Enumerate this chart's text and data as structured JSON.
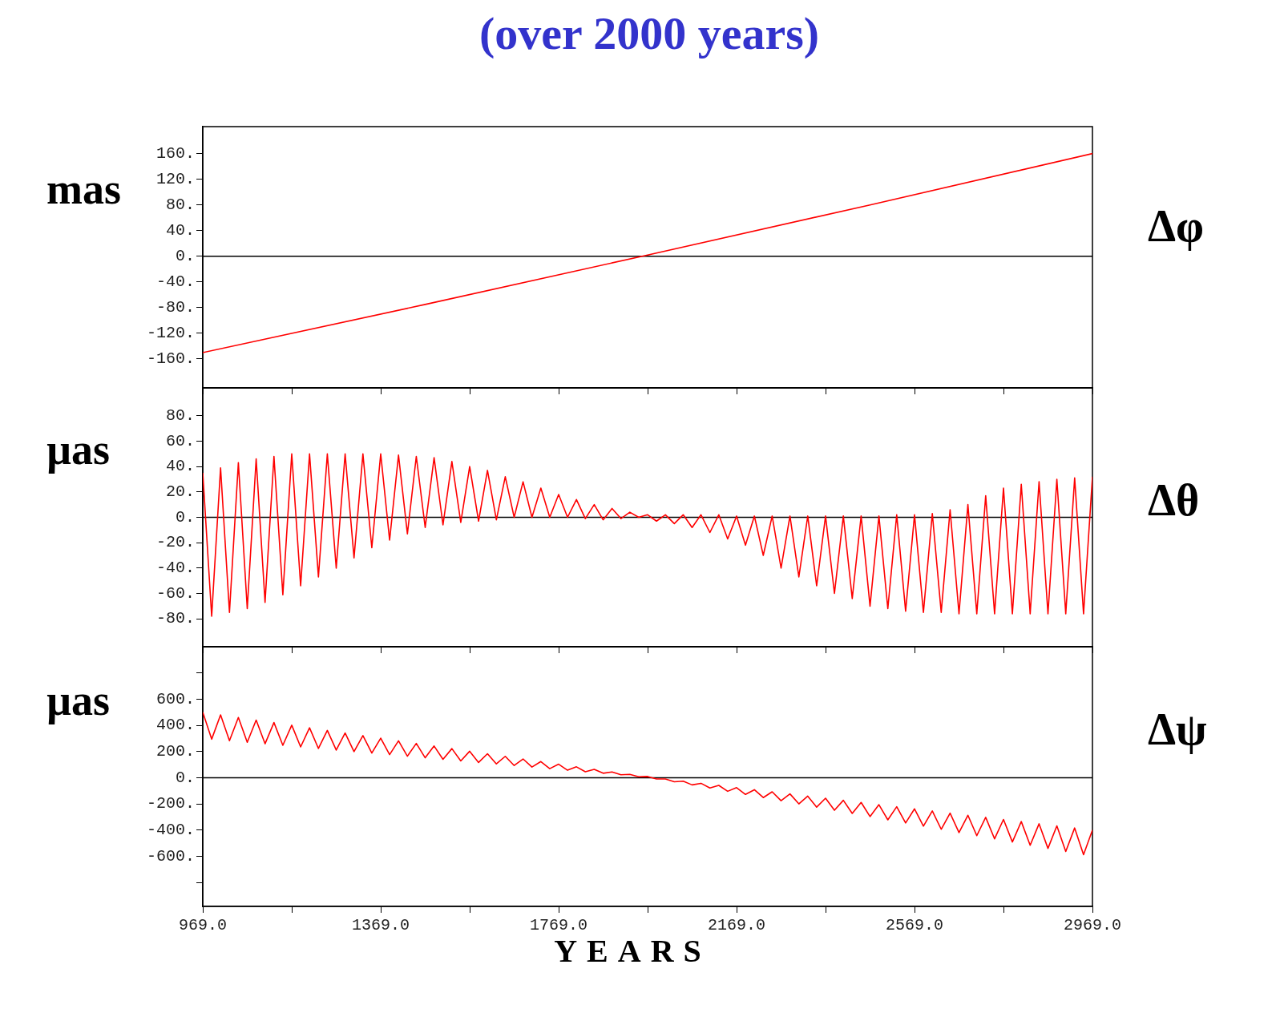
{
  "chart_data": [
    {
      "type": "line",
      "title": "(over 2000 years)",
      "ylabel": "mas",
      "annotations": [
        "Δφ"
      ],
      "xlim": [
        969,
        2969
      ],
      "xticks": [
        {
          "value": 969,
          "label": null
        },
        {
          "value": 1169,
          "label": null
        },
        {
          "value": 1369,
          "label": null
        },
        {
          "value": 1569,
          "label": null
        },
        {
          "value": 1769,
          "label": null
        },
        {
          "value": 1969,
          "label": null
        },
        {
          "value": 2169,
          "label": null
        },
        {
          "value": 2369,
          "label": null
        },
        {
          "value": 2569,
          "label": null
        },
        {
          "value": 2769,
          "label": null
        },
        {
          "value": 2969,
          "label": null
        }
      ],
      "ylim": [
        -205,
        202
      ],
      "yticks": [
        {
          "value": -160,
          "label": "-160."
        },
        {
          "value": -120,
          "label": "-120."
        },
        {
          "value": -80,
          "label": "-80."
        },
        {
          "value": -40,
          "label": "-40."
        },
        {
          "value": 0,
          "label": "0."
        },
        {
          "value": 40,
          "label": "40."
        },
        {
          "value": 80,
          "label": "80."
        },
        {
          "value": 120,
          "label": "120."
        },
        {
          "value": 160,
          "label": "160."
        }
      ],
      "tick_labels": "y",
      "ref_lines": [
        {
          "axis": "y",
          "value": 0,
          "color": "#000000"
        }
      ],
      "x": [
        969,
        1469,
        1969,
        2469,
        2969
      ],
      "series": [
        {
          "color": "#ff0000",
          "values": [
            -150,
            -75,
            2,
            80,
            160
          ]
        }
      ]
    },
    {
      "type": "line",
      "ylabel": "µas",
      "annotations": [
        "Δθ"
      ],
      "xlim": [
        969,
        2969
      ],
      "xticks": [
        {
          "value": 969,
          "label": null
        },
        {
          "value": 1169,
          "label": null
        },
        {
          "value": 1369,
          "label": null
        },
        {
          "value": 1569,
          "label": null
        },
        {
          "value": 1769,
          "label": null
        },
        {
          "value": 1969,
          "label": null
        },
        {
          "value": 2169,
          "label": null
        },
        {
          "value": 2369,
          "label": null
        },
        {
          "value": 2569,
          "label": null
        },
        {
          "value": 2769,
          "label": null
        },
        {
          "value": 2969,
          "label": null
        }
      ],
      "ylim": [
        -102,
        102
      ],
      "yticks": [
        {
          "value": -80,
          "label": "-80."
        },
        {
          "value": -60,
          "label": "-60."
        },
        {
          "value": -40,
          "label": "-40."
        },
        {
          "value": -20,
          "label": "-20."
        },
        {
          "value": 0,
          "label": "0."
        },
        {
          "value": 20,
          "label": "20."
        },
        {
          "value": 40,
          "label": "40."
        },
        {
          "value": 60,
          "label": "60."
        },
        {
          "value": 80,
          "label": "80."
        }
      ],
      "tick_labels": "y",
      "ref_lines": [
        {
          "axis": "y",
          "value": 0,
          "color": "#000000"
        }
      ],
      "x": [
        969,
        989,
        1009,
        1029,
        1049,
        1069,
        1089,
        1109,
        1129,
        1149,
        1169,
        1189,
        1209,
        1229,
        1249,
        1269,
        1289,
        1309,
        1329,
        1349,
        1369,
        1389,
        1409,
        1429,
        1449,
        1469,
        1489,
        1509,
        1529,
        1549,
        1569,
        1589,
        1609,
        1629,
        1649,
        1669,
        1689,
        1709,
        1729,
        1749,
        1769,
        1789,
        1809,
        1829,
        1849,
        1869,
        1889,
        1909,
        1929,
        1949,
        1969,
        1989,
        2009,
        2029,
        2049,
        2069,
        2089,
        2109,
        2129,
        2149,
        2169,
        2189,
        2209,
        2229,
        2249,
        2269,
        2289,
        2309,
        2329,
        2349,
        2369,
        2389,
        2409,
        2429,
        2449,
        2469,
        2489,
        2509,
        2529,
        2549,
        2569,
        2589,
        2609,
        2629,
        2649,
        2669,
        2689,
        2709,
        2729,
        2749,
        2769,
        2789,
        2809,
        2829,
        2849,
        2869,
        2889,
        2909,
        2929,
        2949,
        2969
      ],
      "series": [
        {
          "color": "#ff0000",
          "values": [
            35,
            -78,
            39,
            -75,
            43,
            -72,
            46,
            -67,
            48,
            -61,
            50,
            -54,
            50,
            -47,
            50,
            -40,
            50,
            -32,
            50,
            -24,
            50,
            -18,
            49,
            -13,
            48,
            -8,
            47,
            -6,
            44,
            -4,
            40,
            -3,
            37,
            -2,
            32,
            0,
            28,
            0,
            23,
            0,
            18,
            0,
            14,
            -1,
            10,
            -2,
            7,
            -1,
            4,
            0,
            2,
            -3,
            2,
            -5,
            2,
            -8,
            2,
            -12,
            2,
            -17,
            1,
            -22,
            1,
            -30,
            1,
            -40,
            1,
            -47,
            1,
            -54,
            1,
            -60,
            1,
            -64,
            1,
            -70,
            1,
            -72,
            2,
            -74,
            2,
            -75,
            3,
            -75,
            6,
            -76,
            10,
            -76,
            17,
            -76,
            23,
            -76,
            26,
            -76,
            28,
            -76,
            30,
            -76,
            31,
            -76,
            32
          ]
        }
      ]
    },
    {
      "type": "line",
      "ylabel": "µas",
      "xlabel": "YEARS",
      "annotations": [
        "Δψ"
      ],
      "xlim": [
        969,
        2969
      ],
      "xticks": [
        {
          "value": 969,
          "label": "969.0"
        },
        {
          "value": 1169,
          "label": null
        },
        {
          "value": 1369,
          "label": "1369.0"
        },
        {
          "value": 1569,
          "label": null
        },
        {
          "value": 1769,
          "label": "1769.0"
        },
        {
          "value": 1969,
          "label": null
        },
        {
          "value": 2169,
          "label": "2169.0"
        },
        {
          "value": 2369,
          "label": null
        },
        {
          "value": 2569,
          "label": "2569.0"
        },
        {
          "value": 2769,
          "label": null
        },
        {
          "value": 2969,
          "label": "2969.0"
        }
      ],
      "ylim": [
        -983,
        1000
      ],
      "yticks": [
        {
          "value": -800,
          "label": null
        },
        {
          "value": -600,
          "label": "-600."
        },
        {
          "value": -400,
          "label": "-400."
        },
        {
          "value": -200,
          "label": "-200."
        },
        {
          "value": 0,
          "label": "0."
        },
        {
          "value": 200,
          "label": "200."
        },
        {
          "value": 400,
          "label": "400."
        },
        {
          "value": 600,
          "label": "600."
        },
        {
          "value": 800,
          "label": null
        }
      ],
      "ref_lines": [
        {
          "axis": "y",
          "value": 0,
          "color": "#000000"
        }
      ],
      "x": [
        969,
        989,
        1009,
        1029,
        1049,
        1069,
        1089,
        1109,
        1129,
        1149,
        1169,
        1189,
        1209,
        1229,
        1249,
        1269,
        1289,
        1309,
        1329,
        1349,
        1369,
        1389,
        1409,
        1429,
        1449,
        1469,
        1489,
        1509,
        1529,
        1549,
        1569,
        1589,
        1609,
        1629,
        1649,
        1669,
        1689,
        1709,
        1729,
        1749,
        1769,
        1789,
        1809,
        1829,
        1849,
        1869,
        1889,
        1909,
        1929,
        1949,
        1969,
        1989,
        2009,
        2029,
        2049,
        2069,
        2089,
        2109,
        2129,
        2149,
        2169,
        2189,
        2209,
        2229,
        2249,
        2269,
        2289,
        2309,
        2329,
        2349,
        2369,
        2389,
        2409,
        2429,
        2449,
        2469,
        2489,
        2509,
        2529,
        2549,
        2569,
        2589,
        2609,
        2629,
        2649,
        2669,
        2689,
        2709,
        2729,
        2749,
        2769,
        2789,
        2809,
        2829,
        2849,
        2869,
        2889,
        2909,
        2929,
        2949,
        2969
      ],
      "series": [
        {
          "color": "#ff0000",
          "values": [
            500,
            294,
            480,
            282,
            460,
            270,
            440,
            259,
            421,
            247,
            401,
            235,
            381,
            223,
            361,
            211,
            341,
            199,
            321,
            188,
            302,
            176,
            282,
            164,
            262,
            152,
            242,
            140,
            222,
            128,
            202,
            116,
            183,
            105,
            163,
            93,
            143,
            81,
            123,
            69,
            103,
            57,
            83,
            45,
            64,
            34,
            44,
            22,
            25,
            7,
            9,
            -10,
            -10,
            -31,
            -27,
            -55,
            -43,
            -79,
            -59,
            -104,
            -76,
            -128,
            -92,
            -152,
            -108,
            -176,
            -124,
            -200,
            -141,
            -225,
            -157,
            -249,
            -173,
            -273,
            -189,
            -297,
            -206,
            -322,
            -222,
            -346,
            -238,
            -370,
            -254,
            -394,
            -271,
            -419,
            -287,
            -443,
            -303,
            -467,
            -319,
            -491,
            -335,
            -516,
            -352,
            -540,
            -368,
            -564,
            -384,
            -588,
            -400
          ]
        }
      ]
    }
  ]
}
